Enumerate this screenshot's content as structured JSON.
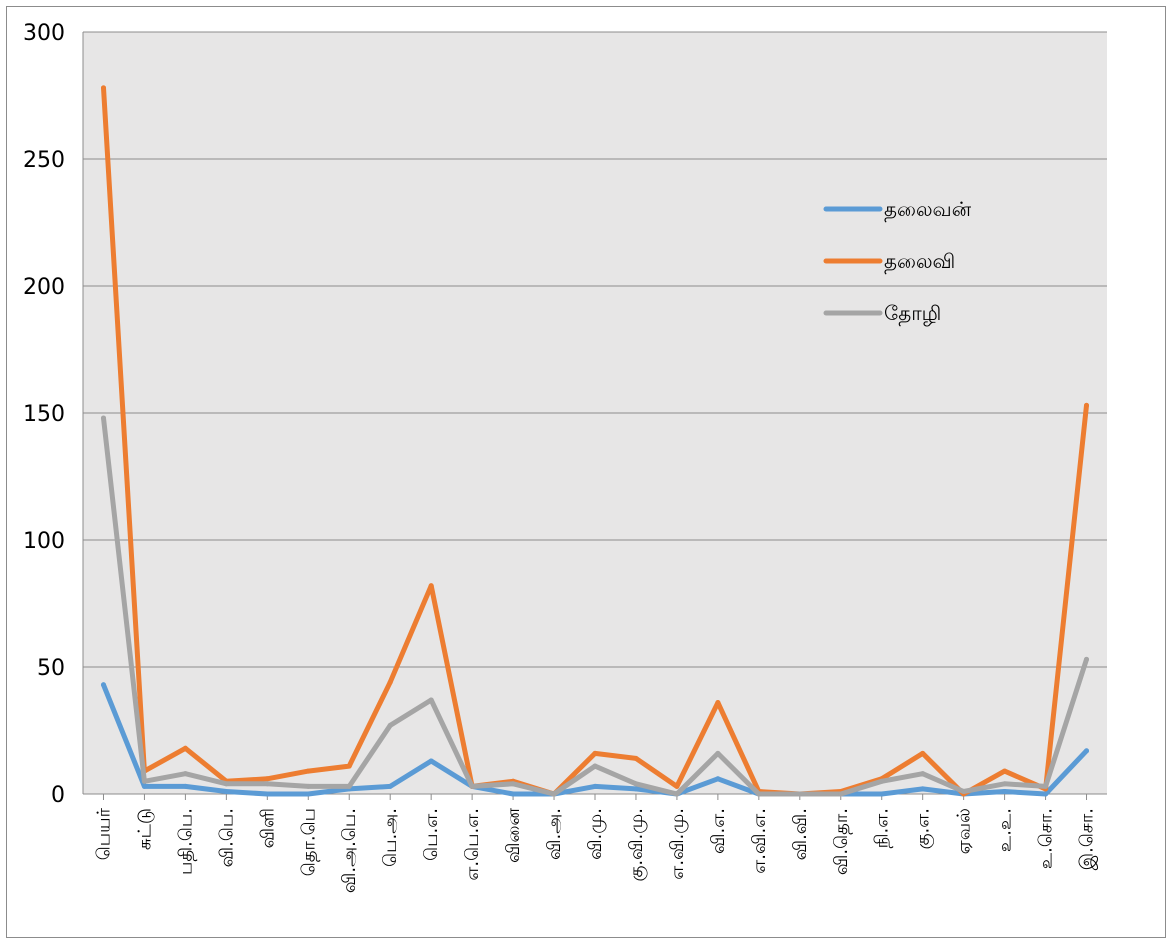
{
  "chart_data": {
    "type": "line",
    "categories": [
      "பெயர்",
      "சுட்டு",
      "பதி.பெ.",
      "வி.பெ.",
      "விளி",
      "தொ.பெ",
      "வி.அ.பெ.",
      "பெ.அ.",
      "பெ.எ.",
      "எ.பெ.எ.",
      "வினை",
      "வி.அ.",
      "வி.மு.",
      "கு.வி.மு.",
      "எ.வி.மு.",
      "வி.எ.",
      "எ.வி.எ.",
      "வி.வி.",
      "வி.தொ.",
      "நி.எ.",
      "கு.எ.",
      "ஏவல்",
      "உ.உ.",
      "உ.சொ.",
      "இ.சொ."
    ],
    "series": [
      {
        "name": "தலைவன்",
        "color": "#5b9bd5",
        "values": [
          43,
          3,
          3,
          1,
          0,
          0,
          2,
          3,
          13,
          3,
          0,
          0,
          3,
          2,
          0,
          6,
          0,
          0,
          0,
          0,
          2,
          0,
          1,
          0,
          17
        ]
      },
      {
        "name": "தலைவி",
        "color": "#ed7d31",
        "values": [
          278,
          9,
          18,
          5,
          6,
          9,
          11,
          44,
          82,
          3,
          5,
          0,
          16,
          14,
          3,
          36,
          1,
          0,
          1,
          6,
          16,
          0,
          9,
          2,
          153
        ]
      },
      {
        "name": "தோழி",
        "color": "#a5a5a5",
        "values": [
          148,
          5,
          8,
          4,
          4,
          3,
          3,
          27,
          37,
          3,
          4,
          0,
          11,
          4,
          0,
          16,
          0,
          0,
          0,
          5,
          8,
          1,
          4,
          3,
          53
        ]
      }
    ],
    "ylim": [
      0,
      300
    ],
    "yticks": [
      0,
      50,
      100,
      150,
      200,
      250,
      300
    ],
    "grid": true,
    "plot_background": "#e7e6e6",
    "legend_position": "right, inside plot"
  }
}
